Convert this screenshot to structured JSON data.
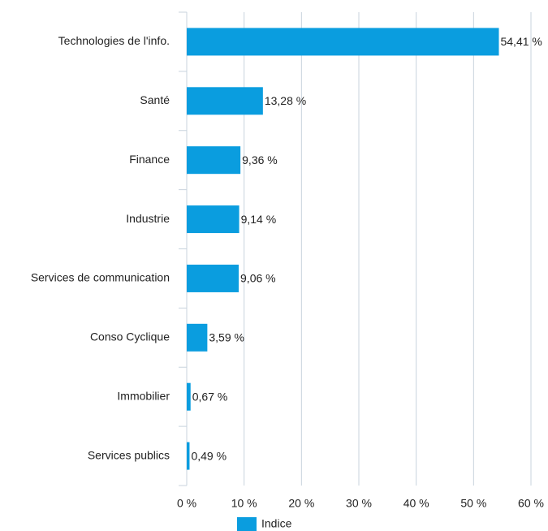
{
  "chart_data": {
    "type": "bar",
    "orientation": "horizontal",
    "categories": [
      "Technologies de l'info.",
      "Santé",
      "Finance",
      "Industrie",
      "Services de communication",
      "Conso Cyclique",
      "Immobilier",
      "Services publics"
    ],
    "series": [
      {
        "name": "Indice",
        "color": "#0a9ddf",
        "values": [
          54.41,
          13.28,
          9.36,
          9.14,
          9.06,
          3.59,
          0.67,
          0.49
        ],
        "value_labels": [
          "54,41 %",
          "13,28 %",
          "9,36 %",
          "9,14 %",
          "9,06 %",
          "3,59 %",
          "0,67 %",
          "0,49 %"
        ]
      }
    ],
    "xlim": [
      0,
      60
    ],
    "xticks": [
      {
        "value": 0,
        "label": "0 %"
      },
      {
        "value": 10,
        "label": "10 %"
      },
      {
        "value": 20,
        "label": "20 %"
      },
      {
        "value": 30,
        "label": "30 %"
      },
      {
        "value": 40,
        "label": "40 %"
      },
      {
        "value": 50,
        "label": "50 %"
      },
      {
        "value": 60,
        "label": "60 %"
      }
    ],
    "grid": true,
    "legend": "bottom"
  }
}
